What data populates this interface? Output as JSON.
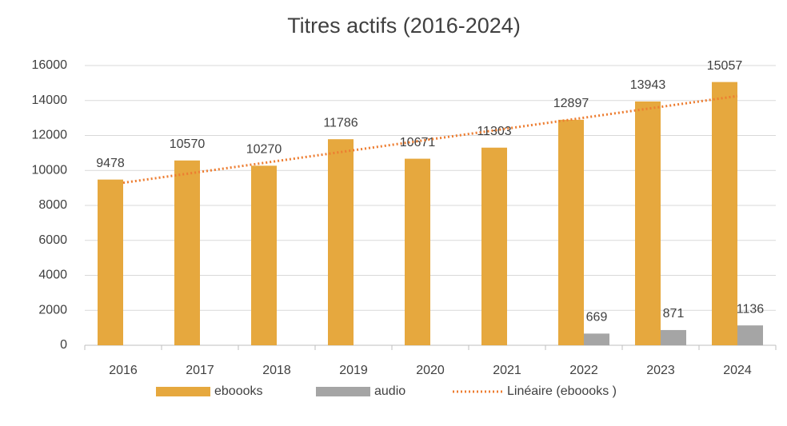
{
  "chart_data": {
    "type": "bar",
    "title": "Titres actifs (2016-2024)",
    "categories": [
      "2016",
      "2017",
      "2018",
      "2019",
      "2020",
      "2021",
      "2022",
      "2023",
      "2024"
    ],
    "series": [
      {
        "name": "eboooks",
        "color": "#e6a83e",
        "values": [
          9478,
          10570,
          10270,
          11786,
          10671,
          11303,
          12897,
          13943,
          15057
        ]
      },
      {
        "name": "audio",
        "color": "#a5a5a5",
        "values": [
          null,
          null,
          null,
          null,
          null,
          null,
          669,
          871,
          1136
        ]
      }
    ],
    "trendline": {
      "name": "Linéaire (eboooks )",
      "color": "#ed7d31",
      "of_series": 0
    },
    "ylim": [
      0,
      16000
    ],
    "yticks": [
      0,
      2000,
      4000,
      6000,
      8000,
      10000,
      12000,
      14000,
      16000
    ],
    "grid": true,
    "legend": "bottom"
  }
}
